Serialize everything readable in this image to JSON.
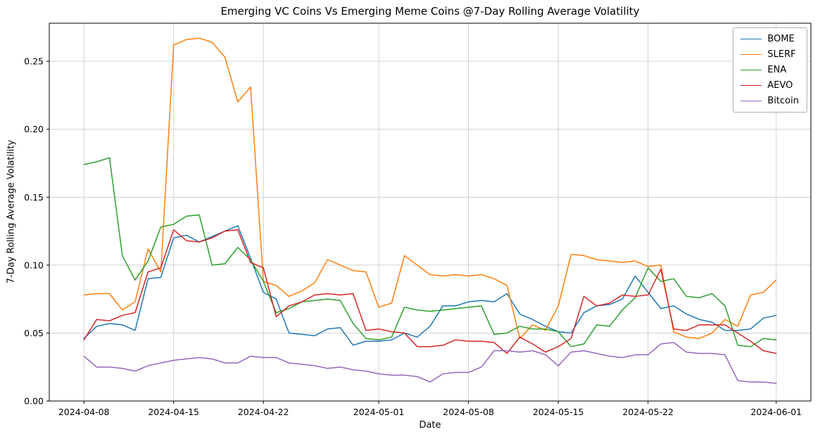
{
  "chart_data": {
    "type": "line",
    "title": "Emerging VC Coins Vs Emerging Meme Coins @7-Day Rolling Average Volatility",
    "xlabel": "Date",
    "ylabel": "7-Day Rolling Average Volatility",
    "ylim": [
      0.0,
      0.278
    ],
    "grid": true,
    "legend_position": "upper right",
    "y_ticks": [
      0.0,
      0.05,
      0.1,
      0.15,
      0.2,
      0.25
    ],
    "y_tick_labels": [
      "0.00",
      "0.05",
      "0.10",
      "0.15",
      "0.20",
      "0.25"
    ],
    "x_tick_labels": [
      "2024-04-08",
      "2024-04-15",
      "2024-04-22",
      "2024-05-01",
      "2024-05-08",
      "2024-05-15",
      "2024-05-22",
      "2024-06-01"
    ],
    "x_dates": [
      "2024-04-08",
      "2024-04-09",
      "2024-04-10",
      "2024-04-11",
      "2024-04-12",
      "2024-04-13",
      "2024-04-14",
      "2024-04-15",
      "2024-04-16",
      "2024-04-17",
      "2024-04-18",
      "2024-04-19",
      "2024-04-20",
      "2024-04-21",
      "2024-04-22",
      "2024-04-23",
      "2024-04-24",
      "2024-04-25",
      "2024-04-26",
      "2024-04-27",
      "2024-04-28",
      "2024-04-29",
      "2024-04-30",
      "2024-05-01",
      "2024-05-02",
      "2024-05-03",
      "2024-05-04",
      "2024-05-05",
      "2024-05-06",
      "2024-05-07",
      "2024-05-08",
      "2024-05-09",
      "2024-05-10",
      "2024-05-11",
      "2024-05-12",
      "2024-05-13",
      "2024-05-14",
      "2024-05-15",
      "2024-05-16",
      "2024-05-17",
      "2024-05-18",
      "2024-05-19",
      "2024-05-20",
      "2024-05-21",
      "2024-05-22",
      "2024-05-23",
      "2024-05-24",
      "2024-05-25",
      "2024-05-26",
      "2024-05-27",
      "2024-05-28",
      "2024-05-29",
      "2024-05-30",
      "2024-05-31",
      "2024-06-01"
    ],
    "series": [
      {
        "name": "BOME",
        "color": "#1f77b4",
        "values": [
          0.046,
          0.055,
          0.057,
          0.056,
          0.052,
          0.09,
          0.091,
          0.12,
          0.122,
          0.117,
          0.121,
          0.125,
          0.129,
          0.105,
          0.08,
          0.075,
          0.05,
          0.049,
          0.048,
          0.053,
          0.054,
          0.041,
          0.044,
          0.044,
          0.045,
          0.05,
          0.047,
          0.055,
          0.07,
          0.07,
          0.073,
          0.074,
          0.073,
          0.079,
          0.064,
          0.06,
          0.055,
          0.051,
          0.05,
          0.065,
          0.07,
          0.071,
          0.075,
          0.092,
          0.08,
          0.068,
          0.07,
          0.064,
          0.06,
          0.058,
          0.052,
          0.052,
          0.053,
          0.061,
          0.063
        ]
      },
      {
        "name": "SLERF",
        "color": "#ff7f0e",
        "values": [
          0.078,
          0.079,
          0.079,
          0.067,
          0.073,
          0.112,
          0.095,
          0.262,
          0.266,
          0.267,
          0.264,
          0.253,
          0.22,
          0.231,
          0.088,
          0.085,
          0.077,
          0.081,
          0.087,
          0.104,
          0.1,
          0.096,
          0.095,
          0.069,
          0.072,
          0.107,
          0.1,
          0.093,
          0.092,
          0.093,
          0.092,
          0.093,
          0.09,
          0.085,
          0.046,
          0.056,
          0.052,
          0.07,
          0.108,
          0.107,
          0.104,
          0.103,
          0.102,
          0.103,
          0.099,
          0.1,
          0.051,
          0.047,
          0.046,
          0.05,
          0.06,
          0.055,
          0.078,
          0.08,
          0.089
        ]
      },
      {
        "name": "ENA",
        "color": "#2ca02c",
        "values": [
          0.174,
          0.176,
          0.179,
          0.107,
          0.089,
          0.103,
          0.128,
          0.13,
          0.136,
          0.137,
          0.1,
          0.101,
          0.113,
          0.104,
          0.088,
          0.065,
          0.068,
          0.073,
          0.074,
          0.075,
          0.074,
          0.057,
          0.046,
          0.045,
          0.047,
          0.069,
          0.067,
          0.066,
          0.067,
          0.068,
          0.069,
          0.07,
          0.049,
          0.05,
          0.055,
          0.053,
          0.053,
          0.051,
          0.04,
          0.042,
          0.056,
          0.055,
          0.067,
          0.076,
          0.098,
          0.088,
          0.09,
          0.077,
          0.076,
          0.079,
          0.07,
          0.041,
          0.04,
          0.046,
          0.045
        ]
      },
      {
        "name": "AEVO",
        "color": "#d62728",
        "values": [
          0.045,
          0.06,
          0.059,
          0.063,
          0.065,
          0.095,
          0.098,
          0.126,
          0.118,
          0.117,
          0.12,
          0.125,
          0.126,
          0.102,
          0.098,
          0.062,
          0.07,
          0.073,
          0.078,
          0.079,
          0.078,
          0.079,
          0.052,
          0.053,
          0.051,
          0.05,
          0.04,
          0.04,
          0.041,
          0.045,
          0.044,
          0.044,
          0.043,
          0.035,
          0.047,
          0.042,
          0.036,
          0.04,
          0.046,
          0.077,
          0.07,
          0.072,
          0.078,
          0.077,
          0.078,
          0.097,
          0.053,
          0.052,
          0.056,
          0.056,
          0.056,
          0.05,
          0.044,
          0.037,
          0.035
        ]
      },
      {
        "name": "Bitcoin",
        "color": "#9467bd",
        "values": [
          0.033,
          0.025,
          0.025,
          0.024,
          0.022,
          0.026,
          0.028,
          0.03,
          0.031,
          0.032,
          0.031,
          0.028,
          0.028,
          0.033,
          0.032,
          0.032,
          0.028,
          0.027,
          0.026,
          0.024,
          0.025,
          0.023,
          0.022,
          0.02,
          0.019,
          0.019,
          0.018,
          0.014,
          0.02,
          0.021,
          0.021,
          0.025,
          0.037,
          0.037,
          0.036,
          0.037,
          0.034,
          0.026,
          0.036,
          0.037,
          0.035,
          0.033,
          0.032,
          0.034,
          0.034,
          0.042,
          0.043,
          0.036,
          0.035,
          0.035,
          0.034,
          0.015,
          0.014,
          0.014,
          0.013
        ]
      }
    ]
  }
}
